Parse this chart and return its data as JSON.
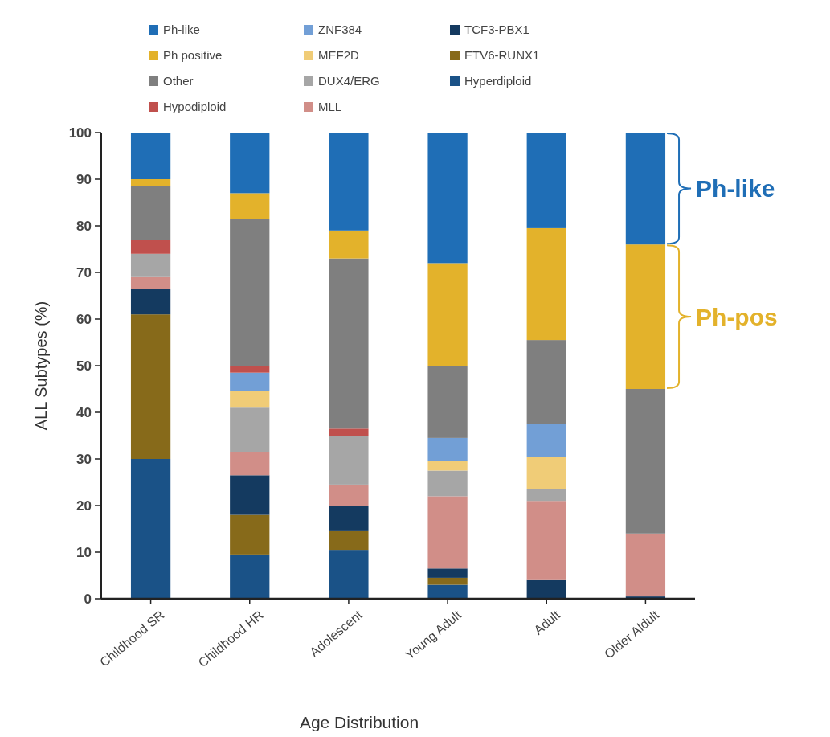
{
  "chart_data": {
    "type": "bar",
    "stacked": true,
    "categories": [
      "Childhood SR",
      "Childhood HR",
      "Adolescent",
      "Young Adult",
      "Adult",
      "Older Aldult"
    ],
    "series": [
      {
        "name": "Hyperdiploid",
        "color": "#1a5287",
        "values": [
          30,
          9.5,
          10.5,
          3,
          0,
          0
        ]
      },
      {
        "name": "ETV6-RUNX1",
        "color": "#876a1a",
        "values": [
          31,
          8.5,
          4,
          1.5,
          0,
          0
        ]
      },
      {
        "name": "TCF3-PBX1",
        "color": "#143a60",
        "values": [
          5.5,
          8.5,
          5.5,
          2,
          4,
          0.5
        ]
      },
      {
        "name": "MLL",
        "color": "#d18e88",
        "values": [
          2.5,
          5,
          4.5,
          15.5,
          17,
          13.5
        ]
      },
      {
        "name": "DUX4/ERG",
        "color": "#a6a6a6",
        "values": [
          5,
          9.5,
          10.5,
          5.5,
          2.5,
          0
        ]
      },
      {
        "name": "MEF2D",
        "color": "#f0cc77",
        "values": [
          0,
          3.5,
          0,
          2,
          7,
          0
        ]
      },
      {
        "name": "ZNF384",
        "color": "#729fd6",
        "values": [
          0,
          4,
          0,
          5,
          7,
          0
        ]
      },
      {
        "name": "Hypodiploid",
        "color": "#c0504d",
        "values": [
          3,
          1.5,
          1.5,
          0,
          0,
          0
        ]
      },
      {
        "name": "Other",
        "color": "#7f7f7f",
        "values": [
          11.5,
          31.5,
          36.5,
          15.5,
          18,
          31
        ]
      },
      {
        "name": "Ph positive",
        "color": "#e3b22b",
        "values": [
          1.5,
          5.5,
          6,
          22,
          24,
          31
        ]
      },
      {
        "name": "Ph-like",
        "color": "#1f6eb6",
        "values": [
          10,
          13,
          21,
          28,
          20.5,
          24
        ]
      }
    ],
    "ylim": [
      0,
      100
    ],
    "yticks": [
      0,
      10,
      20,
      30,
      40,
      50,
      60,
      70,
      80,
      90,
      100
    ],
    "ylabel": "ALL Subtypes (%)",
    "xlabel": "Age Distribution",
    "legend": "top",
    "annotations": [
      "Ph-like",
      "Ph-pos"
    ]
  }
}
